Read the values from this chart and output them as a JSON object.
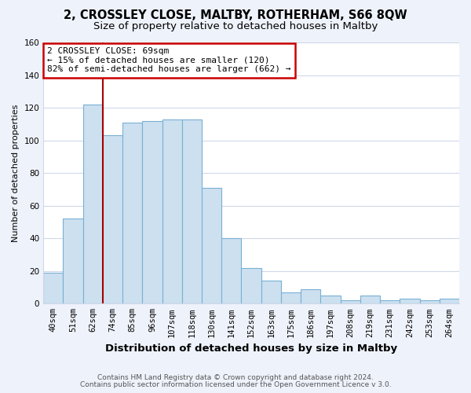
{
  "title": "2, CROSSLEY CLOSE, MALTBY, ROTHERHAM, S66 8QW",
  "subtitle": "Size of property relative to detached houses in Maltby",
  "xlabel": "Distribution of detached houses by size in Maltby",
  "ylabel": "Number of detached properties",
  "bar_labels": [
    "40sqm",
    "51sqm",
    "62sqm",
    "74sqm",
    "85sqm",
    "96sqm",
    "107sqm",
    "118sqm",
    "130sqm",
    "141sqm",
    "152sqm",
    "163sqm",
    "175sqm",
    "186sqm",
    "197sqm",
    "208sqm",
    "219sqm",
    "231sqm",
    "242sqm",
    "253sqm",
    "264sqm"
  ],
  "bar_values": [
    19,
    52,
    122,
    103,
    111,
    112,
    113,
    113,
    71,
    40,
    22,
    14,
    7,
    9,
    5,
    2,
    5,
    2,
    3,
    2,
    3
  ],
  "bar_color": "#cce0f0",
  "bar_edge_color": "#7ab0d4",
  "vline_index": 2,
  "vline_color": "#aa0000",
  "annotation_text": "2 CROSSLEY CLOSE: 69sqm\n← 15% of detached houses are smaller (120)\n82% of semi-detached houses are larger (662) →",
  "annotation_box_edge": "#cc0000",
  "footer1": "Contains HM Land Registry data © Crown copyright and database right 2024.",
  "footer2": "Contains public sector information licensed under the Open Government Licence v 3.0.",
  "ylim": [
    0,
    160
  ],
  "yticks": [
    0,
    20,
    40,
    60,
    80,
    100,
    120,
    140,
    160
  ],
  "plot_bg_color": "#ffffff",
  "fig_bg_color": "#eef2fa",
  "grid_color": "#d0d8e8",
  "title_fontsize": 10.5,
  "subtitle_fontsize": 9.5,
  "xlabel_fontsize": 9.5,
  "ylabel_fontsize": 8,
  "tick_fontsize": 7.5,
  "footer_fontsize": 6.5,
  "annotation_fontsize": 8
}
